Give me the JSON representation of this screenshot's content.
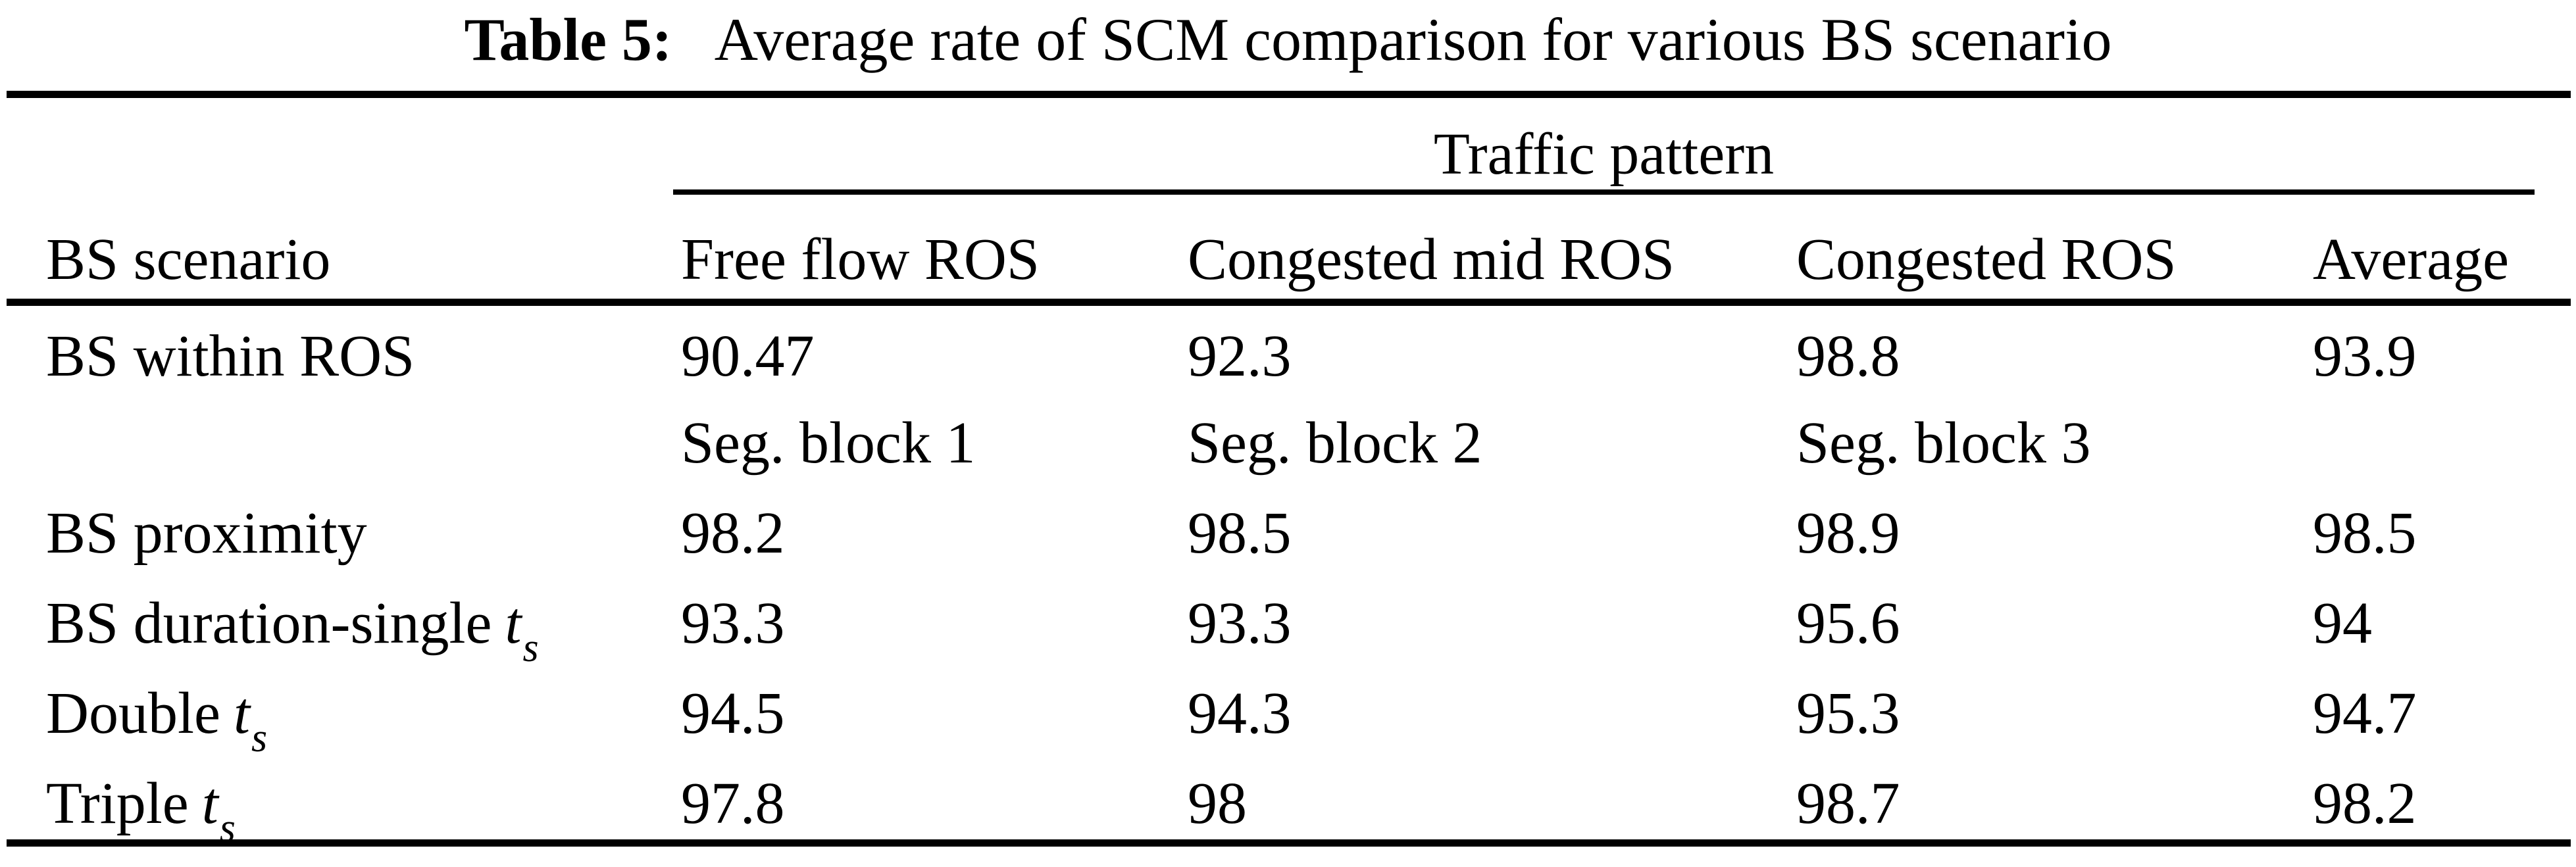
{
  "ink_color": "#000000",
  "background_color": "#ffffff",
  "caption": {
    "label": "Table 5:",
    "text": "Average rate of SCM comparison for various BS scenario"
  },
  "table": {
    "span_header": "Traffic pattern",
    "columns": [
      "BS scenario",
      "Free flow ROS",
      "Congested mid ROS",
      "Congested ROS",
      "Average"
    ],
    "rows": [
      {
        "scenario": "BS within ROS",
        "var": "",
        "sub": "",
        "values": [
          "90.47",
          "92.3",
          "98.8",
          "93.9"
        ]
      },
      {
        "scenario": "",
        "var": "",
        "sub": "",
        "values": [
          "Seg. block 1",
          "Seg. block 2",
          "Seg. block 3",
          ""
        ]
      },
      {
        "scenario": "BS proximity",
        "var": "",
        "sub": "",
        "values": [
          "98.2",
          "98.5",
          "98.9",
          "98.5"
        ]
      },
      {
        "scenario": "BS duration-single",
        "var": "t",
        "sub": "s",
        "values": [
          "93.3",
          "93.3",
          "95.6",
          "94"
        ]
      },
      {
        "scenario": "Double",
        "var": "t",
        "sub": "s",
        "values": [
          "94.5",
          "94.3",
          "95.3",
          "94.7"
        ]
      },
      {
        "scenario": "Triple",
        "var": "t",
        "sub": "s",
        "values": [
          "97.8",
          "98",
          "98.7",
          "98.2"
        ]
      }
    ]
  }
}
